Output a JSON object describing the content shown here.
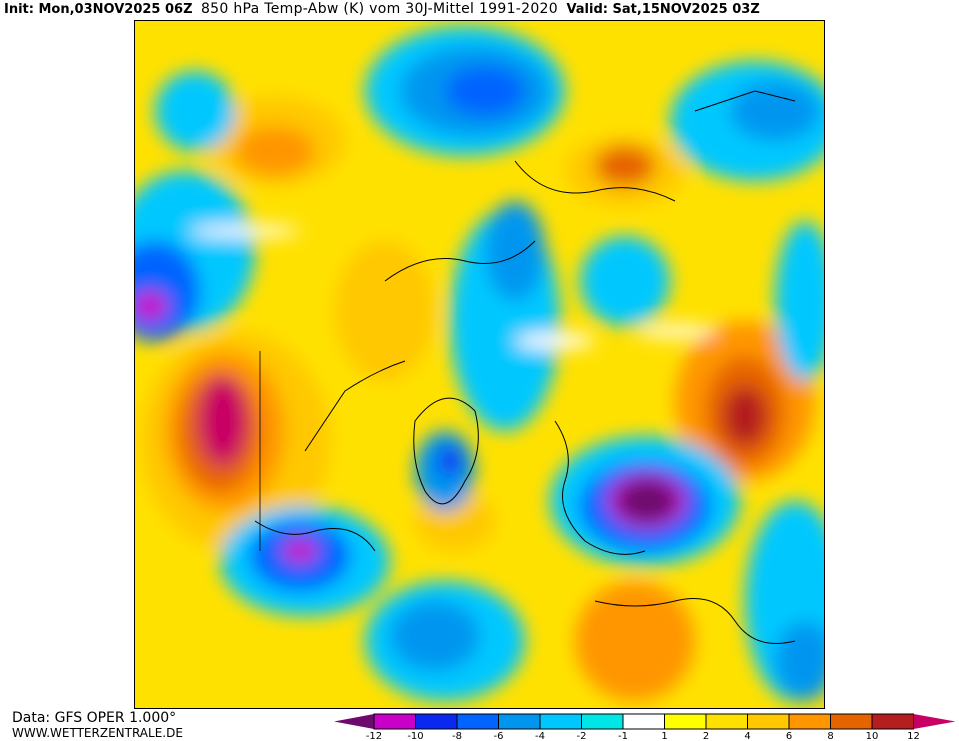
{
  "header": {
    "init": "Init: Mon,03NOV2025 06Z",
    "title": "850 hPa Temp-Abw (K) vom 30J-Mittel 1991-2020",
    "valid": "Valid: Sat,15NOV2025 03Z"
  },
  "footer": {
    "data_source": "Data: GFS OPER 1.000°",
    "website": "WWW.WETTERZENTRALE.DE"
  },
  "legend": {
    "ticks": [
      "-12",
      "-10",
      "-8",
      "-6",
      "-4",
      "-2",
      "-1",
      "1",
      "2",
      "4",
      "6",
      "8",
      "10",
      "12"
    ],
    "colors": {
      "below_-12": "#6e0a6e",
      "-12_-10": "#c800c8",
      "-10_-8": "#0a28f0",
      "-8_-6": "#0064ff",
      "-6_-4": "#0096f0",
      "-4_-2": "#00c8ff",
      "-2_-1": "#00e6e6",
      "-1_1": "#ffffff",
      "1_2": "#ffff00",
      "2_4": "#ffe100",
      "4_6": "#ffc800",
      "6_8": "#ff9600",
      "8_10": "#e66400",
      "10_12": "#b41e1e",
      "above_12": "#c80064"
    }
  }
}
